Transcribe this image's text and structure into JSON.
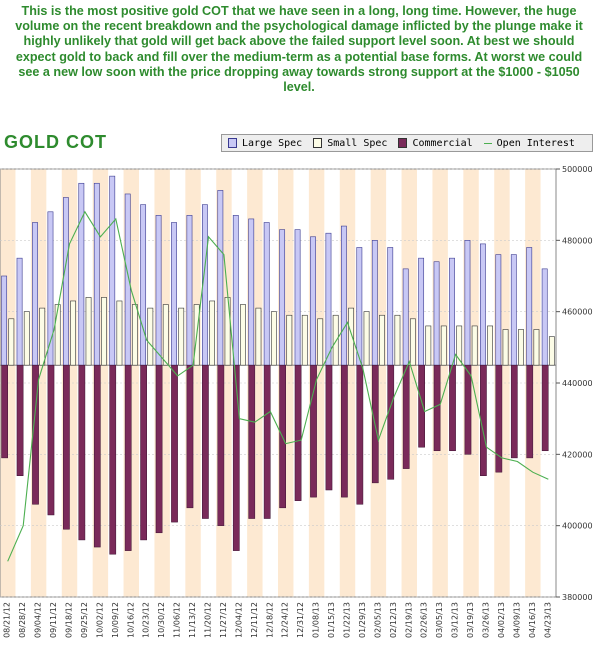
{
  "commentary": "This is the most positive gold COT that we have seen in a long, long time. However, the huge volume on the recent breakdown and the psychological damage inflicted by the plunge make it highly unlikely that gold will get back above the failed support level soon. At best we should expect gold to back and fill over the medium-term as a potential base forms. At worst we could see a new low soon with the price dropping away towards strong support at the $1000 - $1050 level.",
  "colors": {
    "large_spec": "#c8c8f5",
    "large_spec_border": "#3a3a90",
    "small_spec": "#fcfce6",
    "commercial": "#7a2a5a",
    "open_interest": "#4caf50",
    "stripe": "#fde9d2",
    "title_green": "#2e8b2e"
  },
  "chart_data": {
    "type": "bar",
    "title": "GOLD COT",
    "legend": [
      "Large Spec",
      "Small Spec",
      "Commercial",
      "Open Interest"
    ],
    "legend_placement": "top-right",
    "categories": [
      "08/21/12",
      "08/28/12",
      "09/04/12",
      "09/11/12",
      "09/18/12",
      "09/25/12",
      "10/02/12",
      "10/09/12",
      "10/16/12",
      "10/23/12",
      "10/30/12",
      "11/06/12",
      "11/13/12",
      "11/20/12",
      "11/27/12",
      "12/04/12",
      "12/11/12",
      "12/18/12",
      "12/24/12",
      "12/31/12",
      "01/08/13",
      "01/15/13",
      "01/22/13",
      "01/29/13",
      "02/05/13",
      "02/12/13",
      "02/19/13",
      "02/26/13",
      "03/05/13",
      "03/12/13",
      "03/19/13",
      "03/26/13",
      "04/02/13",
      "04/09/13",
      "04/16/13",
      "04/23/13"
    ],
    "right_axis": {
      "min": 380000,
      "max": 500000,
      "ticks": [
        "380000",
        "400000",
        "420000",
        "440000",
        "460000",
        "480000",
        "500000"
      ]
    },
    "left_axis_zero_ref": 445000,
    "series": [
      {
        "name": "Large Spec",
        "kind": "bar",
        "values": [
          470000,
          475000,
          485000,
          488000,
          492000,
          496000,
          496000,
          498000,
          493000,
          490000,
          487000,
          485000,
          487000,
          490000,
          494000,
          487000,
          486000,
          485000,
          483000,
          483000,
          481000,
          482000,
          484000,
          478000,
          480000,
          478000,
          472000,
          475000,
          474000,
          475000,
          480000,
          479000,
          476000,
          476000,
          478000,
          472000
        ]
      },
      {
        "name": "Small Spec",
        "kind": "bar",
        "values": [
          458000,
          460000,
          461000,
          462000,
          463000,
          464000,
          464000,
          463000,
          462000,
          461000,
          462000,
          461000,
          462000,
          463000,
          464000,
          462000,
          461000,
          460000,
          459000,
          459000,
          458000,
          459000,
          461000,
          460000,
          459000,
          459000,
          458000,
          456000,
          456000,
          456000,
          456000,
          456000,
          455000,
          455000,
          455000,
          453000
        ]
      },
      {
        "name": "Commercial",
        "kind": "bar",
        "values": [
          419000,
          414000,
          406000,
          403000,
          399000,
          396000,
          394000,
          392000,
          393000,
          396000,
          398000,
          401000,
          405000,
          402000,
          400000,
          393000,
          402000,
          402000,
          405000,
          407000,
          408000,
          410000,
          408000,
          406000,
          412000,
          413000,
          416000,
          422000,
          421000,
          421000,
          420000,
          414000,
          415000,
          419000,
          419000,
          421000
        ]
      },
      {
        "name": "Open Interest",
        "kind": "line",
        "values": [
          390000,
          400000,
          441000,
          455000,
          479000,
          488000,
          481000,
          486000,
          466000,
          452000,
          447000,
          442000,
          445000,
          481000,
          476000,
          430000,
          429000,
          432000,
          423000,
          424000,
          441000,
          450000,
          457000,
          444000,
          424000,
          436000,
          446000,
          432000,
          434000,
          448000,
          442000,
          422000,
          419000,
          418000,
          415000,
          413000
        ]
      }
    ]
  }
}
